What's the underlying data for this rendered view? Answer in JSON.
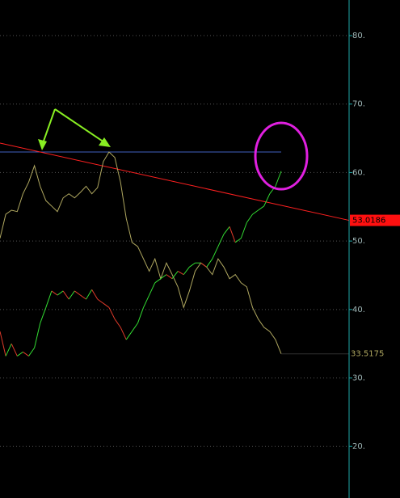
{
  "chart_data": {
    "type": "line",
    "ylim": [
      12.47,
      85.2
    ],
    "yticks": [
      {
        "value": 20,
        "label": "20."
      },
      {
        "value": 30,
        "label": "30."
      },
      {
        "value": 40,
        "label": "40."
      },
      {
        "value": 50,
        "label": "50."
      },
      {
        "value": 60,
        "label": "60."
      },
      {
        "value": 70,
        "label": "70."
      },
      {
        "value": 80,
        "label": "80."
      }
    ],
    "grid": true,
    "series": [
      {
        "color": "#b0a860",
        "values": [
          50.4,
          53.9,
          54.5,
          54.3,
          56.9,
          58.6,
          61.0,
          58.0,
          55.9,
          55.1,
          54.3,
          56.3,
          56.9,
          56.3,
          57.1,
          58.0,
          56.9,
          57.8,
          61.6,
          63.0,
          62.2,
          58.6,
          53.3,
          49.8,
          49.2,
          47.4,
          45.6,
          47.4,
          44.5,
          46.8,
          45.1,
          43.3,
          40.3,
          42.7,
          45.6,
          46.8,
          46.2,
          45.1,
          47.4,
          46.2,
          44.5,
          45.1,
          43.9,
          43.3,
          40.3,
          38.6,
          37.4,
          36.8,
          35.6,
          33.5175
        ],
        "value_labels": [
          null,
          null,
          null,
          null,
          null,
          null,
          null,
          null,
          null,
          null,
          null,
          null,
          null,
          null,
          null,
          null,
          null,
          null,
          null,
          null,
          null,
          null,
          null,
          null,
          null,
          null,
          null,
          null,
          null,
          null,
          null,
          null,
          null,
          null,
          null,
          null,
          null,
          null,
          null,
          null,
          null,
          null,
          null,
          null,
          null,
          null,
          null,
          null,
          null,
          "33.5175"
        ]
      },
      {
        "color": "#33dd33",
        "down_color": "#e03a2a",
        "values": [
          36.8,
          33.2,
          35.0,
          33.2,
          33.8,
          33.2,
          34.4,
          38.0,
          40.3,
          42.7,
          42.1,
          42.7,
          41.5,
          42.7,
          42.1,
          41.5,
          42.9,
          41.5,
          40.9,
          40.3,
          38.6,
          37.4,
          35.6,
          36.8,
          38.0,
          40.3,
          42.1,
          43.9,
          44.5,
          45.1,
          44.5,
          45.6,
          45.1,
          46.2,
          46.8,
          46.8,
          46.2,
          47.4,
          49.2,
          51.0,
          52.1,
          49.8,
          50.4,
          52.7,
          53.9,
          54.5,
          55.1,
          56.9,
          58.0,
          60.2
        ]
      }
    ],
    "trendline": {
      "start": 64.3,
      "end": 53.0186,
      "label": "53.0186",
      "color": "#ff2020"
    },
    "level": {
      "value": 63.0,
      "color": "#4060c0"
    }
  }
}
